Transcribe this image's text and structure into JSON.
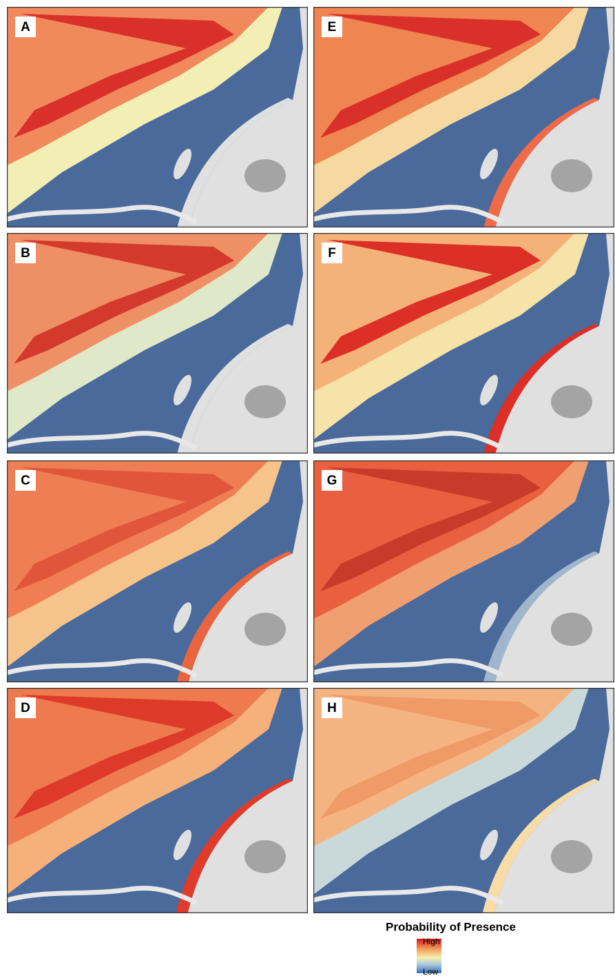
{
  "panels": [
    {
      "label": "A"
    },
    {
      "label": "B"
    },
    {
      "label": "C"
    },
    {
      "label": "D"
    },
    {
      "label": "E"
    },
    {
      "label": "F"
    },
    {
      "label": "G"
    },
    {
      "label": "H"
    }
  ],
  "legend": {
    "title": "Probability of Presence",
    "high": "High",
    "low": "Low"
  }
}
